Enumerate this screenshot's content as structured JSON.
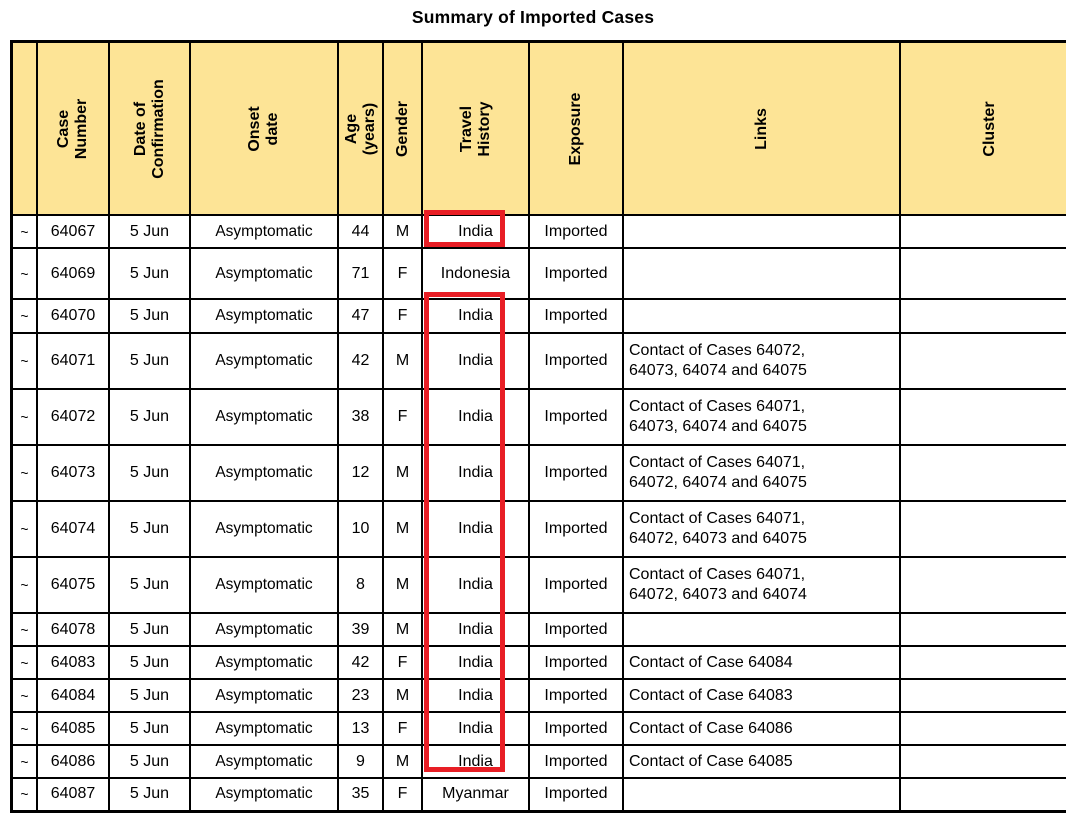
{
  "title": "Summary of Imported Cases",
  "colors": {
    "header_bg": "#FDE496",
    "highlight_red": "#E81E25",
    "grid": "#000000"
  },
  "table": {
    "columns": [
      {
        "key": "marker",
        "label": ""
      },
      {
        "key": "case_number",
        "label": "Case Number"
      },
      {
        "key": "confirmation_date",
        "label": "Date of\nConfirmation"
      },
      {
        "key": "onset_date",
        "label": "Onset date"
      },
      {
        "key": "age",
        "label": "Age (years)"
      },
      {
        "key": "gender",
        "label": "Gender"
      },
      {
        "key": "travel_history",
        "label": "Travel History"
      },
      {
        "key": "exposure",
        "label": "Exposure"
      },
      {
        "key": "links",
        "label": "Links"
      },
      {
        "key": "cluster",
        "label": "Cluster"
      }
    ],
    "rows": [
      {
        "marker": "~",
        "case_number": "64067",
        "confirmation_date": "5 Jun",
        "onset_date": "Asymptomatic",
        "age": "44",
        "gender": "M",
        "travel_history": "India",
        "exposure": "Imported",
        "links": "",
        "cluster": ""
      },
      {
        "marker": "~",
        "case_number": "64069",
        "confirmation_date": "5 Jun",
        "onset_date": "Asymptomatic",
        "age": "71",
        "gender": "F",
        "travel_history": "Indonesia",
        "exposure": "Imported",
        "links": "",
        "cluster": ""
      },
      {
        "marker": "~",
        "case_number": "64070",
        "confirmation_date": "5 Jun",
        "onset_date": "Asymptomatic",
        "age": "47",
        "gender": "F",
        "travel_history": "India",
        "exposure": "Imported",
        "links": "",
        "cluster": ""
      },
      {
        "marker": "~",
        "case_number": "64071",
        "confirmation_date": "5 Jun",
        "onset_date": "Asymptomatic",
        "age": "42",
        "gender": "M",
        "travel_history": "India",
        "exposure": "Imported",
        "links": "Contact of Cases 64072, 64073, 64074 and 64075",
        "cluster": ""
      },
      {
        "marker": "~",
        "case_number": "64072",
        "confirmation_date": "5 Jun",
        "onset_date": "Asymptomatic",
        "age": "38",
        "gender": "F",
        "travel_history": "India",
        "exposure": "Imported",
        "links": "Contact of Cases 64071, 64073, 64074 and 64075",
        "cluster": ""
      },
      {
        "marker": "~",
        "case_number": "64073",
        "confirmation_date": "5 Jun",
        "onset_date": "Asymptomatic",
        "age": "12",
        "gender": "M",
        "travel_history": "India",
        "exposure": "Imported",
        "links": "Contact of Cases 64071, 64072, 64074 and 64075",
        "cluster": ""
      },
      {
        "marker": "~",
        "case_number": "64074",
        "confirmation_date": "5 Jun",
        "onset_date": "Asymptomatic",
        "age": "10",
        "gender": "M",
        "travel_history": "India",
        "exposure": "Imported",
        "links": "Contact of Cases 64071, 64072, 64073 and 64075",
        "cluster": ""
      },
      {
        "marker": "~",
        "case_number": "64075",
        "confirmation_date": "5 Jun",
        "onset_date": "Asymptomatic",
        "age": "8",
        "gender": "M",
        "travel_history": "India",
        "exposure": "Imported",
        "links": "Contact of Cases 64071, 64072, 64073 and 64074",
        "cluster": ""
      },
      {
        "marker": "~",
        "case_number": "64078",
        "confirmation_date": "5 Jun",
        "onset_date": "Asymptomatic",
        "age": "39",
        "gender": "M",
        "travel_history": "India",
        "exposure": "Imported",
        "links": "",
        "cluster": ""
      },
      {
        "marker": "~",
        "case_number": "64083",
        "confirmation_date": "5 Jun",
        "onset_date": "Asymptomatic",
        "age": "42",
        "gender": "F",
        "travel_history": "India",
        "exposure": "Imported",
        "links": "Contact of Case 64084",
        "cluster": ""
      },
      {
        "marker": "~",
        "case_number": "64084",
        "confirmation_date": "5 Jun",
        "onset_date": "Asymptomatic",
        "age": "23",
        "gender": "M",
        "travel_history": "India",
        "exposure": "Imported",
        "links": "Contact of Case 64083",
        "cluster": ""
      },
      {
        "marker": "~",
        "case_number": "64085",
        "confirmation_date": "5 Jun",
        "onset_date": "Asymptomatic",
        "age": "13",
        "gender": "F",
        "travel_history": "India",
        "exposure": "Imported",
        "links": "Contact of Case 64086",
        "cluster": ""
      },
      {
        "marker": "~",
        "case_number": "64086",
        "confirmation_date": "5 Jun",
        "onset_date": "Asymptomatic",
        "age": "9",
        "gender": "M",
        "travel_history": "India",
        "exposure": "Imported",
        "links": "Contact of Case 64085",
        "cluster": ""
      },
      {
        "marker": "~",
        "case_number": "64087",
        "confirmation_date": "5 Jun",
        "onset_date": "Asymptomatic",
        "age": "35",
        "gender": "F",
        "travel_history": "Myanmar",
        "exposure": "Imported",
        "links": "",
        "cluster": ""
      }
    ]
  },
  "annotations": {
    "highlight_boxes": [
      {
        "name": "red-box-india-64067",
        "encloses": "India"
      },
      {
        "name": "red-box-india-64070-64086",
        "encloses": "India"
      }
    ]
  }
}
